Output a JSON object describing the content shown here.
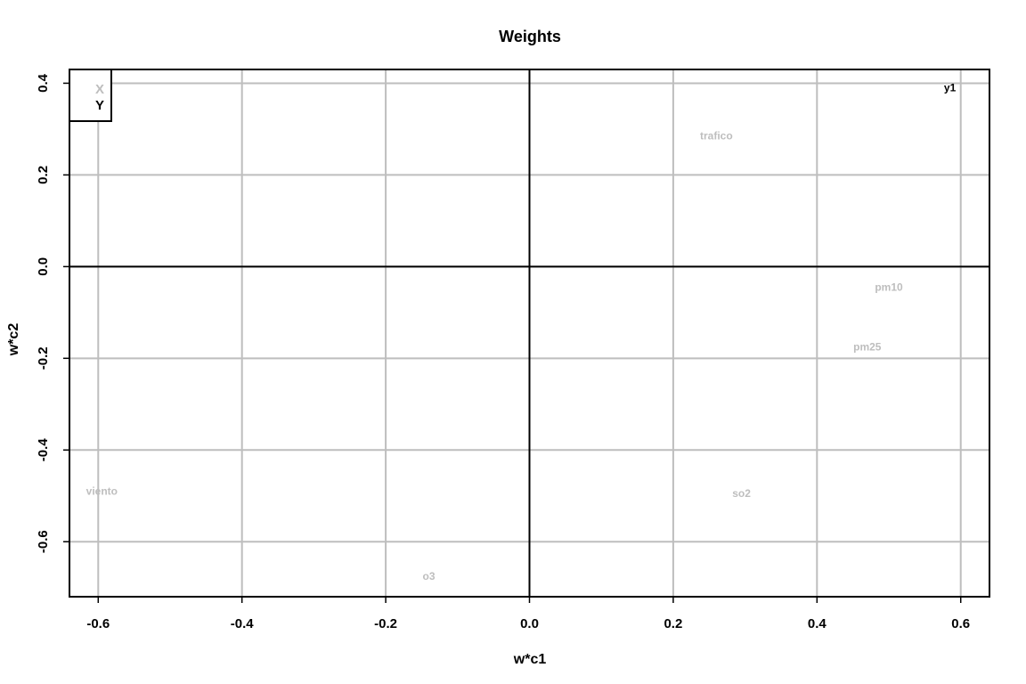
{
  "chart_data": {
    "type": "scatter",
    "title": "Weights",
    "xlabel": "w*c1",
    "ylabel": "w*c2",
    "xlim": [
      -0.64,
      0.64
    ],
    "ylim": [
      -0.72,
      0.43
    ],
    "x_ticks": [
      -0.6,
      -0.4,
      -0.2,
      0.0,
      0.2,
      0.4,
      0.6
    ],
    "y_ticks": [
      -0.6,
      -0.4,
      -0.2,
      0.0,
      0.2,
      0.4
    ],
    "x_tick_labels": [
      "-0.6",
      "-0.4",
      "-0.2",
      "0.0",
      "0.2",
      "0.4",
      "0.6"
    ],
    "y_tick_labels": [
      "-0.6",
      "-0.4",
      "-0.2",
      "0.0",
      "0.2",
      "0.4"
    ],
    "grid": true,
    "reference_lines": {
      "x": 0,
      "y": 0
    },
    "legend": {
      "position": "top-left",
      "entries": [
        {
          "label": "X",
          "color": "#bebebe"
        },
        {
          "label": "Y",
          "color": "#000000"
        }
      ]
    },
    "series": [
      {
        "name": "X",
        "color": "#bebebe",
        "points": [
          {
            "label": "trafico",
            "x": 0.26,
            "y": 0.285
          },
          {
            "label": "pm10",
            "x": 0.5,
            "y": -0.045
          },
          {
            "label": "pm25",
            "x": 0.47,
            "y": -0.175
          },
          {
            "label": "viento",
            "x": -0.595,
            "y": -0.49
          },
          {
            "label": "so2",
            "x": 0.295,
            "y": -0.495
          },
          {
            "label": "o3",
            "x": -0.14,
            "y": -0.675
          }
        ]
      },
      {
        "name": "Y",
        "color": "#000000",
        "points": [
          {
            "label": "y1",
            "x": 0.585,
            "y": 0.39
          }
        ]
      }
    ]
  }
}
